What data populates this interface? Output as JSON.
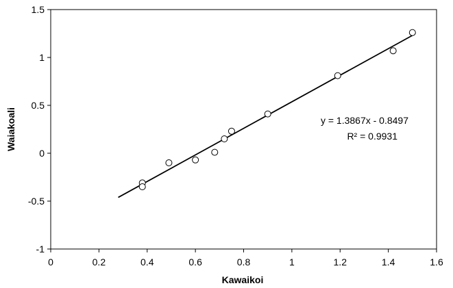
{
  "chart_data": {
    "type": "scatter",
    "title": "",
    "xlabel": "Kawaikoi",
    "ylabel": "Waiakoali",
    "xlim": [
      0,
      1.6
    ],
    "ylim": [
      -1,
      1.5
    ],
    "x_ticks": [
      "0",
      "0.2",
      "0.4",
      "0.6",
      "0.8",
      "1",
      "1.2",
      "1.4",
      "1.6"
    ],
    "y_ticks": [
      "1.5",
      "1",
      "0.5",
      "0",
      "-0.5",
      "-1"
    ],
    "x_tick_values": [
      0,
      0.2,
      0.4,
      0.6,
      0.8,
      1.0,
      1.2,
      1.4,
      1.6
    ],
    "y_tick_values": [
      1.5,
      1.0,
      0.5,
      0,
      -0.5,
      -1.0
    ],
    "grid": false,
    "legend": "none",
    "series": [
      {
        "values": [
          {
            "x": 0.38,
            "y": -0.31
          },
          {
            "x": 0.38,
            "y": -0.35
          },
          {
            "x": 0.49,
            "y": -0.1
          },
          {
            "x": 0.6,
            "y": -0.07
          },
          {
            "x": 0.68,
            "y": 0.01
          },
          {
            "x": 0.72,
            "y": 0.15
          },
          {
            "x": 0.75,
            "y": 0.23
          },
          {
            "x": 0.9,
            "y": 0.41
          },
          {
            "x": 1.19,
            "y": 0.81
          },
          {
            "x": 1.42,
            "y": 1.07
          },
          {
            "x": 1.5,
            "y": 1.26
          }
        ],
        "marker": "open-circle",
        "color": "#000000"
      }
    ],
    "trendline": {
      "slope": 1.3867,
      "intercept": -0.8497,
      "x_range": [
        0.28,
        1.5
      ],
      "color": "#000000"
    },
    "annotations": {
      "equation": "y = 1.3867x - 0.8497",
      "r_squared": "R² = 0.9931"
    }
  }
}
